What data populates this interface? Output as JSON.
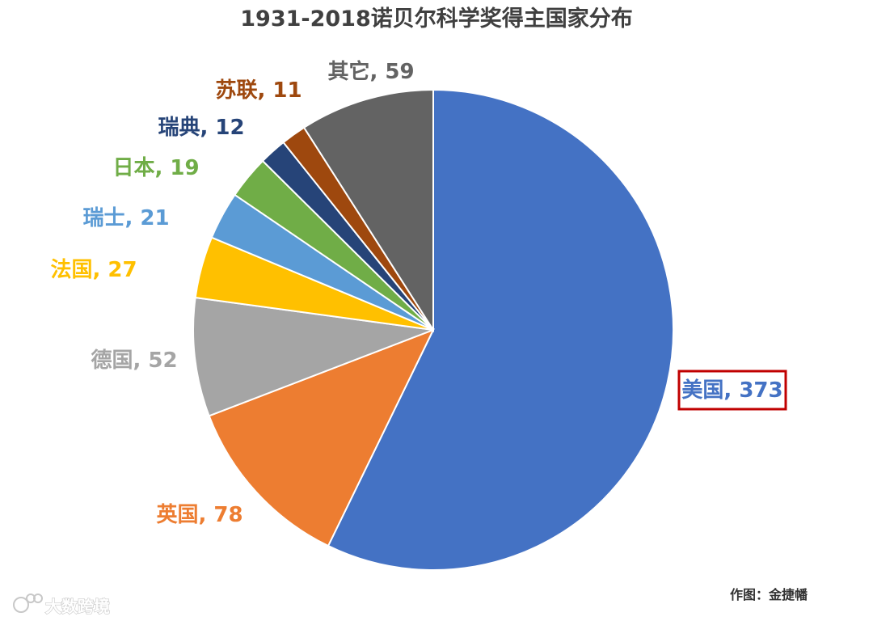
{
  "chart_data": {
    "type": "pie",
    "title": "1931-2018诺贝尔科学奖得主国家分布",
    "slices": [
      {
        "label": "美国, 373",
        "value": 373,
        "color": "#4472C4",
        "highlight_color": "#C00000"
      },
      {
        "label": "英国, 78",
        "value": 78,
        "color": "#ED7D31"
      },
      {
        "label": "德国, 52",
        "value": 52,
        "color": "#A5A5A5"
      },
      {
        "label": "法国, 27",
        "value": 27,
        "color": "#FFC000"
      },
      {
        "label": "瑞士, 21",
        "value": 21,
        "color": "#5B9BD5"
      },
      {
        "label": "日本, 19",
        "value": 19,
        "color": "#70AD47"
      },
      {
        "label": "瑞典, 12",
        "value": 12,
        "color": "#264478"
      },
      {
        "label": "苏联, 11",
        "value": 11,
        "color": "#9E480E"
      },
      {
        "label": "其它, 59",
        "value": 59,
        "color": "#636363"
      }
    ],
    "start": "12 o'clock",
    "direction": "clockwise",
    "legend": "none"
  },
  "credit": "作图：金捷幡",
  "watermark": "大数跨境"
}
